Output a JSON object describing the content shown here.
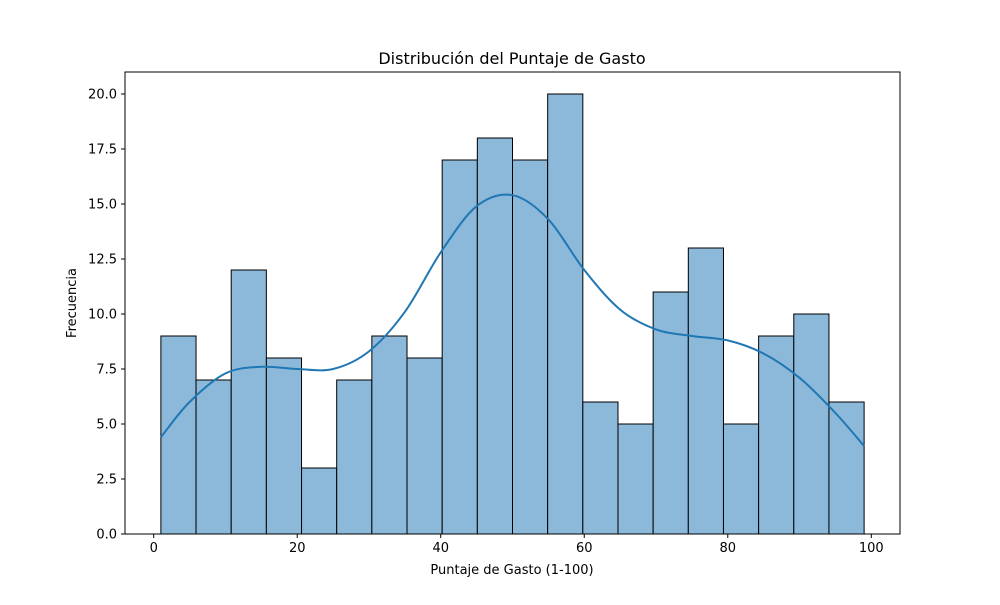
{
  "chart_data": {
    "type": "bar",
    "title": "Distribución del Puntaje de Gasto",
    "xlabel": "Puntaje de Gasto (1-100)",
    "ylabel": "Frecuencia",
    "xlim": [
      -4,
      104
    ],
    "ylim": [
      0,
      21
    ],
    "xticks": [
      0,
      20,
      40,
      60,
      80,
      100
    ],
    "xtick_labels": [
      "0",
      "20",
      "40",
      "60",
      "80",
      "100"
    ],
    "yticks": [
      0,
      2.5,
      5,
      7.5,
      10,
      12.5,
      15,
      17.5,
      20
    ],
    "ytick_labels": [
      "0.0",
      "2.5",
      "5.0",
      "7.5",
      "10.0",
      "12.5",
      "15.0",
      "17.5",
      "20.0"
    ],
    "bins": {
      "edges": [
        1,
        5.9,
        10.8,
        15.7,
        20.6,
        25.5,
        30.4,
        35.3,
        40.2,
        45.1,
        50,
        54.9,
        59.8,
        64.7,
        69.6,
        74.5,
        79.4,
        84.3,
        89.2,
        94.1,
        99
      ],
      "counts": [
        9,
        7,
        12,
        8,
        3,
        7,
        9,
        8,
        17,
        18,
        17,
        20,
        6,
        5,
        11,
        13,
        5,
        9,
        10,
        6
      ]
    },
    "kde": {
      "x": [
        1,
        5,
        10,
        15,
        20,
        25,
        30,
        35,
        40,
        45,
        50,
        55,
        60,
        65,
        70,
        75,
        80,
        85,
        90,
        95,
        99
      ],
      "y": [
        4.4,
        6.0,
        7.3,
        7.6,
        7.5,
        7.5,
        8.3,
        10.1,
        12.8,
        14.9,
        15.4,
        14.3,
        12.0,
        10.2,
        9.3,
        9.0,
        8.8,
        8.2,
        7.1,
        5.5,
        4.0
      ]
    },
    "colors": {
      "bar_fill": "#8cb8d9",
      "bar_edge": "#000000",
      "kde_line": "#1f77b4"
    },
    "grid": false,
    "legend": "none"
  }
}
